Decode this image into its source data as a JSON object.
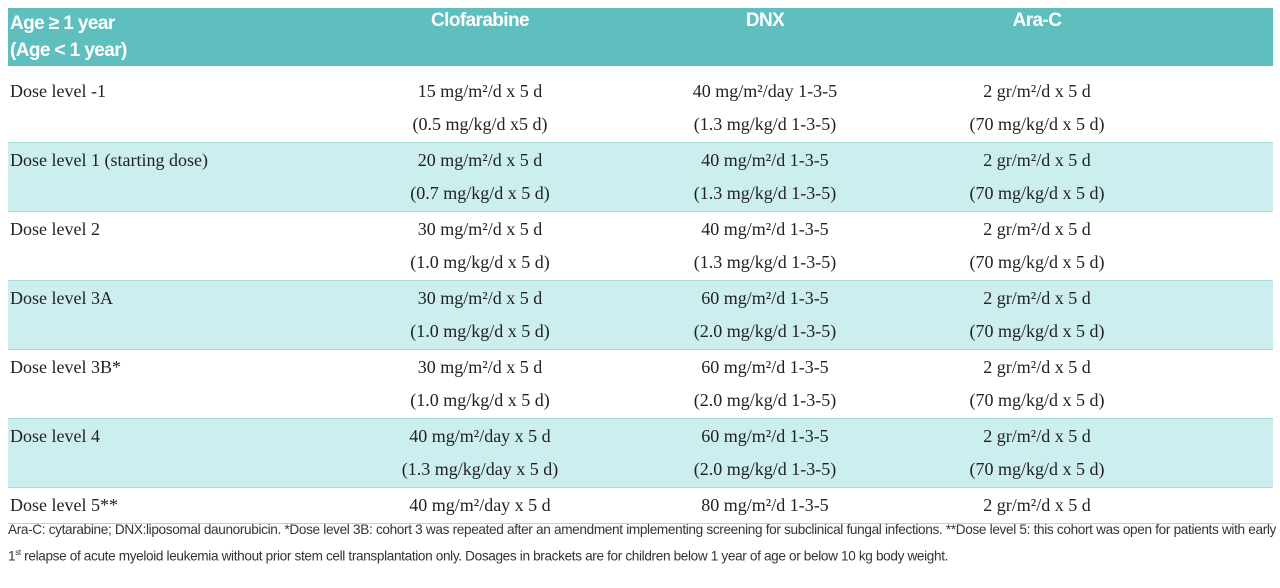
{
  "header": {
    "col0_line1": "Age ≥ 1 year",
    "col0_line2": "(Age < 1 year)",
    "col1": "Clofarabine",
    "col2": "DNX",
    "col3": "Ara-C"
  },
  "rows": [
    {
      "label": "Dose level -1",
      "clo": [
        "15 mg/m²/d x 5 d",
        "(0.5 mg/kg/d x5 d)"
      ],
      "dnx": [
        "40 mg/m²/day 1-3-5",
        "(1.3 mg/kg/d 1-3-5)"
      ],
      "arac": [
        "2 gr/m²/d x 5 d",
        "(70 mg/kg/d x 5 d)"
      ]
    },
    {
      "label": "Dose level 1 (starting dose)",
      "clo": [
        "20 mg/m²/d x 5 d",
        "(0.7 mg/kg/d x 5 d)"
      ],
      "dnx": [
        "40 mg/m²/d 1-3-5",
        "(1.3 mg/kg/d 1-3-5)"
      ],
      "arac": [
        "2 gr/m²/d x 5 d",
        "(70 mg/kg/d x 5 d)"
      ]
    },
    {
      "label": "Dose level 2",
      "clo": [
        "30 mg/m²/d x 5 d",
        "(1.0 mg/kg/d x 5 d)"
      ],
      "dnx": [
        "40 mg/m²/d 1-3-5",
        "(1.3 mg/kg/d 1-3-5)"
      ],
      "arac": [
        "2 gr/m²/d x 5 d",
        "(70 mg/kg/d x 5 d)"
      ]
    },
    {
      "label": "Dose level 3A",
      "clo": [
        "30 mg/m²/d x 5 d",
        "(1.0 mg/kg/d x 5 d)"
      ],
      "dnx": [
        "60 mg/m²/d 1-3-5",
        "(2.0 mg/kg/d 1-3-5)"
      ],
      "arac": [
        "2 gr/m²/d x 5 d",
        "(70 mg/kg/d x 5 d)"
      ]
    },
    {
      "label": "Dose level 3B*",
      "clo": [
        "30 mg/m²/d x 5 d",
        "(1.0 mg/kg/d x 5 d)"
      ],
      "dnx": [
        "60 mg/m²/d 1-3-5",
        "(2.0 mg/kg/d 1-3-5)"
      ],
      "arac": [
        "2 gr/m²/d x 5 d",
        "(70 mg/kg/d x 5 d)"
      ]
    },
    {
      "label": "Dose level 4",
      "clo": [
        "40 mg/m²/day x 5 d",
        "(1.3 mg/kg/day x 5 d)"
      ],
      "dnx": [
        "60 mg/m²/d 1-3-5",
        "(2.0 mg/kg/d 1-3-5)"
      ],
      "arac": [
        "2 gr/m²/d x 5 d",
        "(70 mg/kg/d x 5 d)"
      ]
    },
    {
      "label": "Dose level 5**",
      "clo": [
        "40 mg/m²/day x 5 d"
      ],
      "dnx": [
        "80 mg/m²/d 1-3-5"
      ],
      "arac": [
        "2 gr/m²/d x 5 d"
      ]
    }
  ],
  "footnote": {
    "part1": "Ara-C: cytarabine; DNX:liposomal daunorubicin. *Dose level 3B: cohort 3 was repeated after an amendment implementing screening for subclinical fungal infections. **Dose level 5: this cohort was open for patients with early 1",
    "sup": "st",
    "part2": " relapse of acute myeloid leukemia without prior stem cell transplantation only. Dosages in brackets are for children below 1 year of age or below 10 kg body weight."
  },
  "colors": {
    "header_bg": "#5fbfbf",
    "shade_bg": "#cdeeee"
  }
}
